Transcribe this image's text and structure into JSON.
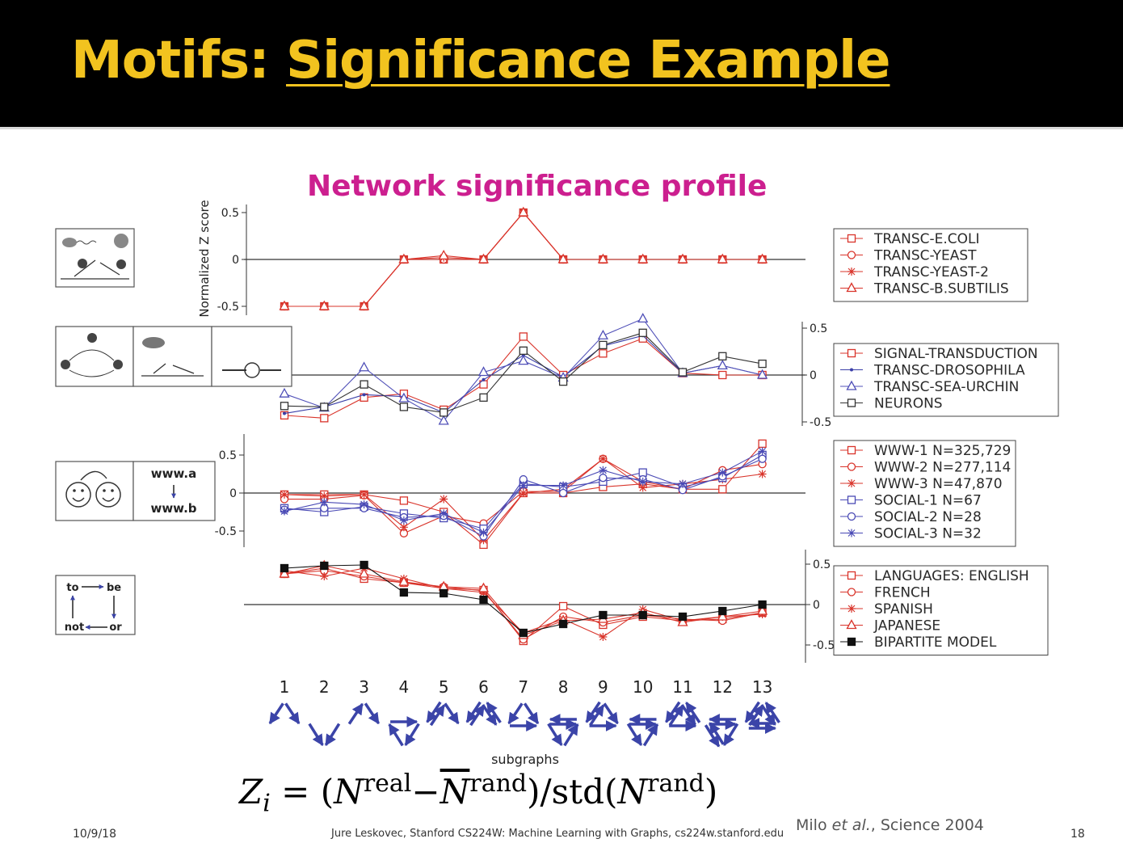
{
  "slide": {
    "title_prefix": "Motifs: ",
    "title_underlined": "Significance Example",
    "subtitle": "Network significance profile",
    "formula": {
      "z": "Z",
      "i": "i",
      "eq": " = (",
      "n": "N",
      "real": "real",
      "minus": "−",
      "rand": "rand",
      "close": ")/std(",
      "end": ")"
    },
    "citation_prefix": "Milo ",
    "citation_italic": "et al.",
    "citation_suffix": ", Science 2004",
    "footer_date": "10/9/18",
    "footer_center": "Jure Leskovec, Stanford CS224W: Machine Learning with Graphs, cs224w.stanford.edu",
    "page_number": "18"
  },
  "chart_data": {
    "type": "line",
    "ylabel": "Normalized Z score",
    "xlabel": "subgraphs",
    "x": [
      1,
      2,
      3,
      4,
      5,
      6,
      7,
      8,
      9,
      10,
      11,
      12,
      13
    ],
    "panel_icons": [
      [
        "bacteria-yeast-icon",
        "gene-regulation-icon"
      ],
      [
        "signaling-icon",
        "fly-icon",
        "neuron-icon"
      ],
      [
        "social-faces-icon",
        "www-link-icon"
      ],
      [
        "word-adjacency-icon"
      ]
    ],
    "icon_text": {
      "www_a": "www.a",
      "www_b": "www.b",
      "to": "to",
      "be": "be",
      "not": "not",
      "or": "or"
    },
    "panels": [
      {
        "ylim": [
          -0.6,
          0.6
        ],
        "yticks": [
          {
            "v": 0.5,
            "label": "0.5"
          },
          {
            "v": 0,
            "label": "0"
          },
          {
            "v": -0.5,
            "label": "-0.5"
          }
        ],
        "axis_side": "left",
        "series": [
          {
            "name": "TRANSC-E.COLI",
            "marker": "square",
            "color": "#d9342b",
            "values": [
              -0.5,
              -0.5,
              -0.5,
              0,
              0,
              0,
              0.5,
              0,
              0,
              0,
              0,
              0,
              0
            ]
          },
          {
            "name": "TRANSC-YEAST",
            "marker": "circle",
            "color": "#d9342b",
            "values": [
              -0.5,
              -0.5,
              -0.5,
              0,
              0,
              0,
              0.5,
              0,
              0,
              0,
              0,
              0,
              0
            ]
          },
          {
            "name": "TRANSC-YEAST-2",
            "marker": "star",
            "color": "#d9342b",
            "values": [
              -0.5,
              -0.5,
              -0.5,
              0,
              0.02,
              0,
              0.5,
              0,
              0,
              0,
              0,
              0,
              0
            ]
          },
          {
            "name": "TRANSC-B.SUBTILIS",
            "marker": "triangle",
            "color": "#d9342b",
            "values": [
              -0.5,
              -0.5,
              -0.5,
              0,
              0.04,
              0,
              0.5,
              0,
              0,
              0,
              0,
              0,
              0
            ]
          }
        ]
      },
      {
        "ylim": [
          -0.6,
          0.6
        ],
        "yticks": [
          {
            "v": 0.5,
            "label": "0.5"
          },
          {
            "v": 0,
            "label": "0"
          },
          {
            "v": -0.5,
            "label": "-0.5"
          }
        ],
        "axis_side": "right",
        "series": [
          {
            "name": "SIGNAL-TRANSDUCTION",
            "marker": "square",
            "color": "#d9342b",
            "values": [
              -0.43,
              -0.46,
              -0.24,
              -0.2,
              -0.37,
              -0.1,
              0.41,
              0.0,
              0.23,
              0.39,
              0.02,
              0.0,
              0.0
            ]
          },
          {
            "name": "TRANSC-DROSOPHILA",
            "marker": "dot",
            "color": "#3b3fa8",
            "values": [
              -0.41,
              -0.34,
              -0.21,
              -0.23,
              -0.4,
              -0.05,
              0.21,
              -0.02,
              0.31,
              0.42,
              0.02,
              0.1,
              0.0
            ]
          },
          {
            "name": "TRANSC-SEA-URCHIN",
            "marker": "triangle",
            "color": "#5050b8",
            "values": [
              -0.2,
              -0.35,
              0.08,
              -0.25,
              -0.49,
              0.03,
              0.15,
              -0.03,
              0.42,
              0.6,
              0.02,
              0.1,
              0.0
            ]
          },
          {
            "name": "NEURONS",
            "marker": "square",
            "color": "#333333",
            "values": [
              -0.33,
              -0.34,
              -0.1,
              -0.34,
              -0.4,
              -0.24,
              0.26,
              -0.07,
              0.32,
              0.45,
              0.03,
              0.2,
              0.12
            ]
          }
        ]
      },
      {
        "ylim": [
          -0.7,
          0.75
        ],
        "yticks": [
          {
            "v": 0.5,
            "label": "0.5"
          },
          {
            "v": 0,
            "label": "0"
          },
          {
            "v": -0.5,
            "label": "-0.5"
          }
        ],
        "axis_side": "left",
        "series": [
          {
            "name": "WWW-1 N=325,729",
            "marker": "square",
            "color": "#d9342b",
            "values": [
              -0.02,
              -0.02,
              -0.02,
              -0.1,
              -0.25,
              -0.68,
              0.0,
              0.0,
              0.08,
              0.12,
              0.05,
              0.05,
              0.65
            ]
          },
          {
            "name": "WWW-2 N=277,114",
            "marker": "circle",
            "color": "#d9342b",
            "values": [
              -0.08,
              -0.08,
              -0.03,
              -0.53,
              -0.3,
              -0.4,
              0.02,
              0.02,
              0.45,
              0.15,
              0.05,
              0.3,
              0.38
            ]
          },
          {
            "name": "WWW-3 N=47,870",
            "marker": "star",
            "color": "#d9342b",
            "values": [
              -0.02,
              -0.04,
              -0.02,
              -0.45,
              -0.08,
              -0.62,
              0.0,
              0.05,
              0.45,
              0.07,
              0.12,
              0.18,
              0.25
            ]
          },
          {
            "name": "SOCIAL-1 N=67",
            "marker": "square",
            "color": "#4a4ab5",
            "values": [
              -0.2,
              -0.25,
              -0.18,
              -0.27,
              -0.33,
              -0.47,
              0.12,
              0.08,
              0.15,
              0.27,
              0.08,
              0.2,
              0.5
            ]
          },
          {
            "name": "SOCIAL-2 N=28",
            "marker": "circle",
            "color": "#4a4ab5",
            "values": [
              -0.22,
              -0.2,
              -0.2,
              -0.32,
              -0.3,
              -0.57,
              0.18,
              0.0,
              0.2,
              0.18,
              0.04,
              0.22,
              0.45
            ]
          },
          {
            "name": "SOCIAL-3 N=32",
            "marker": "star",
            "color": "#4a4ab5",
            "values": [
              -0.24,
              -0.12,
              -0.15,
              -0.36,
              -0.27,
              -0.52,
              0.1,
              0.1,
              0.3,
              0.15,
              0.12,
              0.27,
              0.55
            ]
          }
        ]
      },
      {
        "ylim": [
          -0.6,
          0.6
        ],
        "yticks": [
          {
            "v": 0.5,
            "label": "0.5"
          },
          {
            "v": 0,
            "label": "0"
          },
          {
            "v": -0.5,
            "label": "-0.5"
          }
        ],
        "axis_side": "right",
        "series": [
          {
            "name": "LANGUAGES: ENGLISH",
            "marker": "square",
            "color": "#d9342b",
            "values": [
              0.38,
              0.45,
              0.32,
              0.27,
              0.2,
              0.18,
              -0.45,
              -0.02,
              -0.25,
              -0.15,
              -0.2,
              -0.18,
              -0.1
            ]
          },
          {
            "name": "FRENCH",
            "marker": "circle",
            "color": "#d9342b",
            "values": [
              0.38,
              0.42,
              0.35,
              0.27,
              0.22,
              0.17,
              -0.43,
              -0.15,
              -0.22,
              -0.13,
              -0.18,
              -0.2,
              -0.1
            ]
          },
          {
            "name": "SPANISH",
            "marker": "star",
            "color": "#d9342b",
            "values": [
              0.42,
              0.35,
              0.45,
              0.32,
              0.2,
              0.15,
              -0.35,
              -0.18,
              -0.4,
              -0.06,
              -0.2,
              -0.15,
              -0.12
            ]
          },
          {
            "name": "JAPANESE",
            "marker": "triangle",
            "color": "#d9342b",
            "values": [
              0.38,
              0.48,
              0.38,
              0.28,
              0.22,
              0.2,
              -0.38,
              -0.2,
              -0.18,
              -0.1,
              -0.22,
              -0.15,
              -0.08
            ]
          },
          {
            "name": "BIPARTITE MODEL",
            "marker": "filled-square",
            "color": "#111111",
            "values": [
              0.45,
              0.48,
              0.49,
              0.15,
              0.14,
              0.06,
              -0.35,
              -0.24,
              -0.13,
              -0.13,
              -0.15,
              -0.08,
              0.0
            ]
          }
        ]
      }
    ],
    "motif_icon_color": "#3b44a8"
  }
}
